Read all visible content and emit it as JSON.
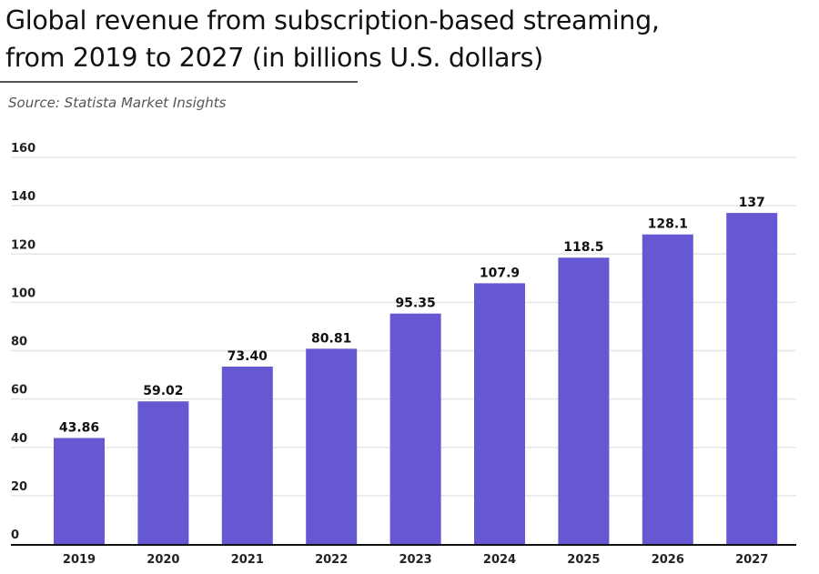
{
  "title": "Global revenue from subscription-based streaming,\nfrom 2019 to 2027 (in billions U.S. dollars)",
  "source": "Source: Statista Market Insights",
  "chart_data": {
    "type": "bar",
    "categories": [
      "2019",
      "2020",
      "2021",
      "2022",
      "2023",
      "2024",
      "2025",
      "2026",
      "2027"
    ],
    "values": [
      43.86,
      59.02,
      73.4,
      80.81,
      95.35,
      107.9,
      118.5,
      128.1,
      137
    ],
    "data_labels": [
      "43.86",
      "59.02",
      "73.40",
      "80.81",
      "95.35",
      "107.9",
      "118.5",
      "128.1",
      "137"
    ],
    "ylim": [
      0,
      160
    ],
    "yticks": [
      0,
      20,
      40,
      60,
      80,
      100,
      120,
      140,
      160
    ],
    "grid": true,
    "bar_color": "#6658d3"
  }
}
